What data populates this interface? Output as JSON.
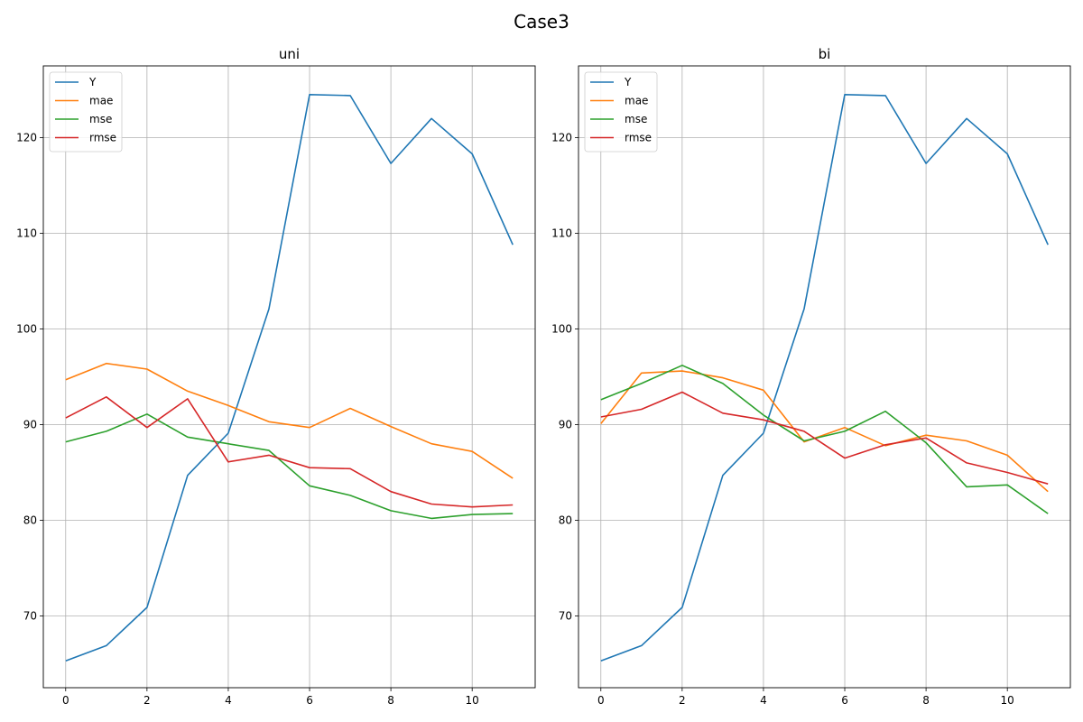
{
  "figure_title": "Case3",
  "chart_data": [
    {
      "type": "line",
      "title": "uni",
      "xlabel": "",
      "ylabel": "",
      "x": [
        0,
        1,
        2,
        3,
        4,
        5,
        6,
        7,
        8,
        9,
        10,
        11
      ],
      "xlim": [
        -0.55,
        11.55
      ],
      "ylim": [
        62.5,
        127.5
      ],
      "xticks": [
        0,
        2,
        4,
        6,
        8,
        10
      ],
      "yticks": [
        70,
        80,
        90,
        100,
        110,
        120
      ],
      "grid": true,
      "legend_position": "upper left",
      "series": [
        {
          "name": "Y",
          "color": "#1f77b4",
          "values": [
            65.3,
            66.9,
            70.9,
            84.7,
            89.1,
            102.1,
            124.5,
            124.4,
            117.3,
            122.0,
            118.3,
            108.8
          ]
        },
        {
          "name": "mae",
          "color": "#ff7f0e",
          "values": [
            94.7,
            96.4,
            95.8,
            93.5,
            92.0,
            90.3,
            89.7,
            91.7,
            89.8,
            88.0,
            87.2,
            84.4
          ]
        },
        {
          "name": "mse",
          "color": "#2ca02c",
          "values": [
            88.2,
            89.3,
            91.1,
            88.7,
            88.0,
            87.3,
            83.6,
            82.6,
            81.0,
            80.2,
            80.6,
            80.7
          ]
        },
        {
          "name": "rmse",
          "color": "#d62728",
          "values": [
            90.7,
            92.9,
            89.7,
            92.7,
            86.1,
            86.8,
            85.5,
            85.4,
            83.0,
            81.7,
            81.4,
            81.6
          ]
        }
      ]
    },
    {
      "type": "line",
      "title": "bi",
      "xlabel": "",
      "ylabel": "",
      "x": [
        0,
        1,
        2,
        3,
        4,
        5,
        6,
        7,
        8,
        9,
        10,
        11
      ],
      "xlim": [
        -0.55,
        11.55
      ],
      "ylim": [
        62.5,
        127.5
      ],
      "xticks": [
        0,
        2,
        4,
        6,
        8,
        10
      ],
      "yticks": [
        70,
        80,
        90,
        100,
        110,
        120
      ],
      "grid": true,
      "legend_position": "upper left",
      "series": [
        {
          "name": "Y",
          "color": "#1f77b4",
          "values": [
            65.3,
            66.9,
            70.9,
            84.7,
            89.1,
            102.1,
            124.5,
            124.4,
            117.3,
            122.0,
            118.3,
            108.8
          ]
        },
        {
          "name": "mae",
          "color": "#ff7f0e",
          "values": [
            90.1,
            95.4,
            95.6,
            94.9,
            93.6,
            88.2,
            89.7,
            87.8,
            88.9,
            88.3,
            86.8,
            83.0
          ]
        },
        {
          "name": "mse",
          "color": "#2ca02c",
          "values": [
            92.6,
            94.3,
            96.2,
            94.3,
            91.0,
            88.3,
            89.3,
            91.4,
            88.1,
            83.5,
            83.7,
            80.7
          ]
        },
        {
          "name": "rmse",
          "color": "#d62728",
          "values": [
            90.8,
            91.6,
            93.4,
            91.2,
            90.5,
            89.3,
            86.5,
            87.9,
            88.6,
            86.0,
            85.0,
            83.8
          ]
        }
      ]
    }
  ]
}
